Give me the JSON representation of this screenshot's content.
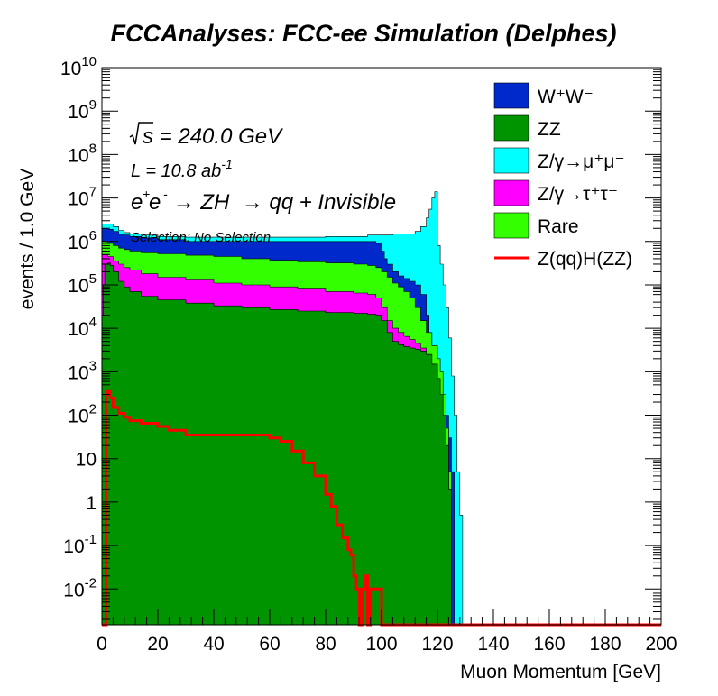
{
  "chart_data": {
    "type": "area",
    "title": "FCCAnalyses: FCC-ee Simulation (Delphes)",
    "xlabel": "Muon Momentum [GeV]",
    "ylabel": "events / 1.0 GeV",
    "xlim": [
      0,
      200
    ],
    "ylim": [
      0.0015,
      10000000000
    ],
    "yscale": "log",
    "x_ticks": [
      "0",
      "20",
      "40",
      "60",
      "80",
      "100",
      "120",
      "140",
      "160",
      "180",
      "200"
    ],
    "y_ticks": [
      {
        "value": 0.01,
        "base": "10",
        "exp": "-2"
      },
      {
        "value": 0.1,
        "base": "10",
        "exp": "-1"
      },
      {
        "value": 1,
        "base": "1",
        "exp": ""
      },
      {
        "value": 10,
        "base": "10",
        "exp": ""
      },
      {
        "value": 100,
        "base": "10",
        "exp": "2"
      },
      {
        "value": 1000,
        "base": "10",
        "exp": "3"
      },
      {
        "value": 10000,
        "base": "10",
        "exp": "4"
      },
      {
        "value": 100000,
        "base": "10",
        "exp": "5"
      },
      {
        "value": 1000000,
        "base": "10",
        "exp": "6"
      },
      {
        "value": 10000000,
        "base": "10",
        "exp": "7"
      },
      {
        "value": 100000000,
        "base": "10",
        "exp": "8"
      },
      {
        "value": 1000000000,
        "base": "10",
        "exp": "9"
      },
      {
        "value": 10000000000,
        "base": "10",
        "exp": "10"
      }
    ],
    "annotations": {
      "sqrt_s": "s = 240.0 GeV",
      "lumi": "L = 10.8 ab",
      "lumi_exp": "-1",
      "process": "e e  → ZH  → qq + Invisible",
      "selection": "Selection: No Selection"
    },
    "legend_position": "top-right",
    "stack_order_bottom_to_top": [
      "ZZ",
      "Z/γ→τ⁺τ⁻",
      "Rare",
      "W⁺W⁻",
      "Z/γ→μ⁺μ⁻"
    ],
    "stacked_totals": [
      {
        "name": "Z/γ→μ⁺μ⁻",
        "color": "#00ffff",
        "x": [
          0,
          2,
          4,
          6,
          8,
          10,
          14,
          20,
          30,
          40,
          50,
          60,
          70,
          80,
          90,
          95,
          100,
          104,
          108,
          112,
          114,
          116,
          117,
          118,
          119,
          120,
          121,
          122,
          123,
          124,
          125,
          126,
          127,
          128,
          129
        ],
        "y": [
          2500000,
          2500000,
          2200000,
          1800000,
          1600000,
          1500000,
          1400000,
          1300000,
          1250000,
          1250000,
          1250000,
          1250000,
          1250000,
          1300000,
          1300000,
          1400000,
          1400000,
          1500000,
          1500000,
          1700000,
          2200000,
          3500000,
          5500000,
          10000000,
          14000000,
          800000,
          300000,
          100000,
          30000,
          6000,
          800,
          100,
          5,
          0.5,
          0.0015
        ]
      },
      {
        "name": "W⁺W⁻",
        "color": "#0029cc",
        "x": [
          0,
          2,
          4,
          6,
          8,
          10,
          14,
          20,
          30,
          40,
          50,
          60,
          70,
          80,
          90,
          95,
          98,
          100,
          101,
          102,
          104,
          106,
          108,
          110,
          112,
          114,
          116,
          117,
          118,
          119,
          120,
          121,
          122,
          123,
          124,
          125,
          126
        ],
        "y": [
          2000000,
          1900000,
          1700000,
          1500000,
          1400000,
          1300000,
          1200000,
          1100000,
          1000000,
          1000000,
          1000000,
          1000000,
          1000000,
          1000000,
          1000000,
          1000000,
          900000,
          600000,
          400000,
          300000,
          200000,
          160000,
          140000,
          120000,
          100000,
          60000,
          20000,
          8000,
          4000,
          2000,
          1000,
          500,
          200,
          100,
          30,
          5,
          0.0015
        ]
      },
      {
        "name": "Rare",
        "color": "#33ff00",
        "x": [
          0,
          2,
          4,
          6,
          8,
          10,
          14,
          20,
          30,
          40,
          50,
          60,
          70,
          80,
          90,
          95,
          98,
          100,
          102,
          104,
          106,
          108,
          110,
          112,
          114,
          116,
          118,
          120,
          121,
          122,
          123,
          124,
          125,
          126
        ],
        "y": [
          1000000,
          900000,
          800000,
          700000,
          650000,
          600000,
          550000,
          520000,
          480000,
          450000,
          400000,
          370000,
          340000,
          320000,
          300000,
          280000,
          250000,
          200000,
          150000,
          110000,
          90000,
          70000,
          50000,
          30000,
          15000,
          8000,
          4000,
          2000,
          1000,
          300,
          50,
          5,
          0.0015,
          0.0015
        ]
      },
      {
        "name": "Z/γ→τ⁺τ⁻",
        "color": "#ff00ff",
        "x": [
          0,
          2,
          4,
          6,
          8,
          10,
          14,
          20,
          30,
          40,
          50,
          60,
          70,
          80,
          90,
          95,
          98,
          100,
          102,
          104,
          106,
          108,
          110,
          112,
          114,
          116,
          118,
          120,
          121,
          122,
          123,
          124,
          125
        ],
        "y": [
          500000,
          450000,
          350000,
          300000,
          250000,
          220000,
          180000,
          150000,
          130000,
          110000,
          100000,
          90000,
          80000,
          70000,
          65000,
          60000,
          50000,
          30000,
          15000,
          10000,
          8000,
          6500,
          5500,
          4500,
          3500,
          2500,
          1500,
          300,
          150,
          50,
          5,
          0.5,
          0.0015
        ]
      },
      {
        "name": "ZZ",
        "color": "#009400",
        "x": [
          0,
          0.5,
          1,
          2,
          3,
          4,
          6,
          8,
          10,
          14,
          20,
          30,
          40,
          50,
          60,
          70,
          80,
          90,
          95,
          98,
          100,
          102,
          104,
          106,
          108,
          110,
          112,
          114,
          116,
          118,
          120,
          121,
          122,
          123,
          124,
          125
        ],
        "y": [
          20000,
          100000,
          300000,
          320000,
          280000,
          200000,
          120000,
          90000,
          70000,
          55000,
          45000,
          38000,
          33000,
          30000,
          27000,
          25000,
          23000,
          22000,
          21000,
          20000,
          15000,
          8000,
          5000,
          4200,
          3800,
          3500,
          3300,
          3000,
          2500,
          1500,
          700,
          300,
          100,
          20,
          2,
          0.0015
        ]
      }
    ],
    "series": [
      {
        "name": "W⁺W⁻",
        "color": "#0029cc",
        "style": "fill"
      },
      {
        "name": "ZZ",
        "color": "#009400",
        "style": "fill"
      },
      {
        "name": "Z/γ→μ⁺μ⁻",
        "color": "#00ffff",
        "style": "fill"
      },
      {
        "name": "Z/γ→τ⁺τ⁻",
        "color": "#ff00ff",
        "style": "fill"
      },
      {
        "name": "Rare",
        "color": "#33ff00",
        "style": "fill"
      },
      {
        "name": "Z(qq)H(ZZ)",
        "color": "#ff0000",
        "style": "line",
        "x": [
          0,
          1,
          1.5,
          2,
          3,
          4,
          6,
          8,
          10,
          14,
          20,
          24,
          30,
          40,
          50,
          60,
          64,
          68,
          72,
          76,
          80,
          82,
          84,
          86,
          88,
          89,
          90,
          91,
          92,
          93,
          94,
          95,
          96,
          98,
          100,
          200
        ],
        "y": [
          0.0015,
          0.0015,
          300,
          350,
          250,
          150,
          110,
          90,
          75,
          65,
          55,
          45,
          35,
          35,
          35,
          30,
          25,
          15,
          8,
          4,
          1.5,
          0.8,
          0.3,
          0.15,
          0.08,
          0.06,
          0.02,
          0.01,
          0.0015,
          0.01,
          0.02,
          0.0015,
          0.01,
          0.01,
          0.0015,
          0.0015
        ]
      }
    ]
  }
}
